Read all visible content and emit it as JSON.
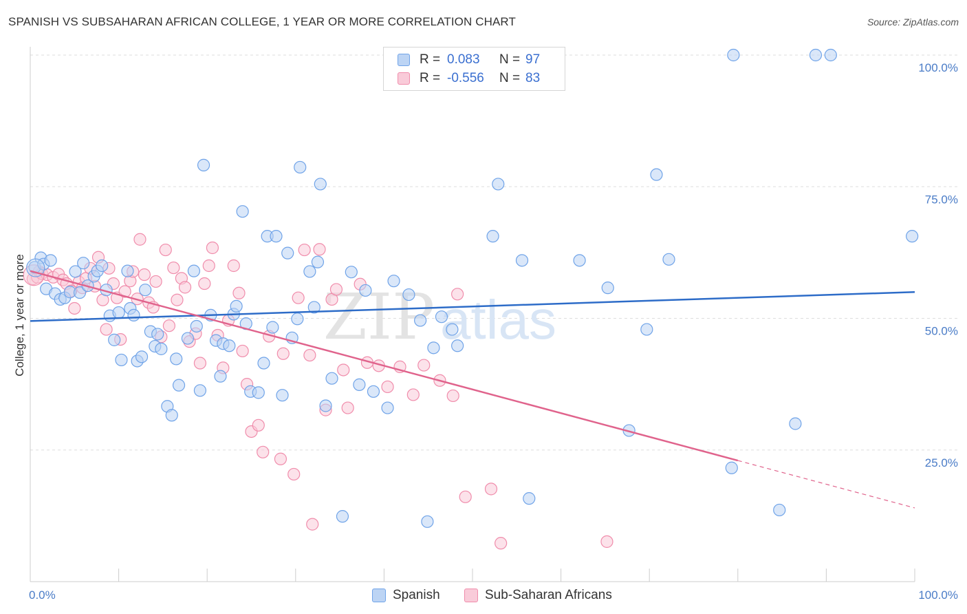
{
  "title": "SPANISH VS SUBSAHARAN AFRICAN COLLEGE, 1 YEAR OR MORE CORRELATION CHART",
  "source": "Source: ZipAtlas.com",
  "watermark": {
    "zip": "ZIP",
    "atlas": "atlas"
  },
  "legend": {
    "rows": [
      {
        "r_label": "R =",
        "r_value": "0.083",
        "n_label": "N =",
        "n_value": "97",
        "color": "#6fa3e8",
        "fill": "#bcd4f4"
      },
      {
        "r_label": "R =",
        "r_value": "-0.556",
        "n_label": "N =",
        "n_value": "83",
        "color": "#f08cab",
        "fill": "#f9cbd9"
      }
    ]
  },
  "bottom_legend": {
    "items": [
      {
        "label": "Spanish",
        "color": "#6fa3e8",
        "fill": "#bcd4f4"
      },
      {
        "label": "Sub-Saharan Africans",
        "color": "#f08cab",
        "fill": "#f9cbd9"
      }
    ]
  },
  "chart_data": {
    "type": "scatter",
    "title": "SPANISH VS SUBSAHARAN AFRICAN COLLEGE, 1 YEAR OR MORE CORRELATION CHART",
    "xlabel": "",
    "ylabel": "College, 1 year or more",
    "xlim": [
      0,
      100
    ],
    "ylim": [
      0,
      100
    ],
    "x_tick_labels": [
      "0.0%",
      "100.0%"
    ],
    "y_ticks": [
      {
        "value": 25,
        "label": "25.0%"
      },
      {
        "value": 50,
        "label": "50.0%"
      },
      {
        "value": 75,
        "label": "75.0%"
      },
      {
        "value": 100,
        "label": "100.0%"
      }
    ],
    "grid": true,
    "legend_position": "top-center",
    "series": [
      {
        "name": "Spanish",
        "color": "#6fa3e8",
        "fill": "#bcd4f4",
        "line_color": "#2d6cc8",
        "trend": {
          "x1": 0,
          "y1": 49.5,
          "x2": 100,
          "y2": 55.0
        },
        "points": [
          [
            0.5,
            59.7
          ],
          [
            1.2,
            61.5
          ],
          [
            1.5,
            60.3
          ],
          [
            2.3,
            61.0
          ],
          [
            1.8,
            55.6
          ],
          [
            2.8,
            54.7
          ],
          [
            3.4,
            53.6
          ],
          [
            3.9,
            53.9
          ],
          [
            4.5,
            55.0
          ],
          [
            5.1,
            58.9
          ],
          [
            5.6,
            54.9
          ],
          [
            6.0,
            60.5
          ],
          [
            6.5,
            56.2
          ],
          [
            7.2,
            58.0
          ],
          [
            7.6,
            59.0
          ],
          [
            8.1,
            60.0
          ],
          [
            8.6,
            55.4
          ],
          [
            9.0,
            50.5
          ],
          [
            9.5,
            45.9
          ],
          [
            10.0,
            51.1
          ],
          [
            10.3,
            42.1
          ],
          [
            11.0,
            59.0
          ],
          [
            11.3,
            51.9
          ],
          [
            11.7,
            50.6
          ],
          [
            12.1,
            41.9
          ],
          [
            12.6,
            42.7
          ],
          [
            13.0,
            55.4
          ],
          [
            13.6,
            47.5
          ],
          [
            14.1,
            44.7
          ],
          [
            14.4,
            47.0
          ],
          [
            14.8,
            44.2
          ],
          [
            15.5,
            33.3
          ],
          [
            16.0,
            31.6
          ],
          [
            16.5,
            42.3
          ],
          [
            16.8,
            37.3
          ],
          [
            17.8,
            46.2
          ],
          [
            18.5,
            59.0
          ],
          [
            18.8,
            48.5
          ],
          [
            19.2,
            36.3
          ],
          [
            19.6,
            79.1
          ],
          [
            20.4,
            50.6
          ],
          [
            21.0,
            45.8
          ],
          [
            21.5,
            39.0
          ],
          [
            21.8,
            45.2
          ],
          [
            22.5,
            44.8
          ],
          [
            23.0,
            50.8
          ],
          [
            23.3,
            52.3
          ],
          [
            24.4,
            49.0
          ],
          [
            24.0,
            70.3
          ],
          [
            24.9,
            36.1
          ],
          [
            25.8,
            35.9
          ],
          [
            26.4,
            41.5
          ],
          [
            26.8,
            65.6
          ],
          [
            27.4,
            48.3
          ],
          [
            27.8,
            65.6
          ],
          [
            28.5,
            35.4
          ],
          [
            29.1,
            62.4
          ],
          [
            29.6,
            46.3
          ],
          [
            30.2,
            49.9
          ],
          [
            30.5,
            78.7
          ],
          [
            31.6,
            58.9
          ],
          [
            32.1,
            52.1
          ],
          [
            32.5,
            60.7
          ],
          [
            32.8,
            75.5
          ],
          [
            33.4,
            33.4
          ],
          [
            34.1,
            38.6
          ],
          [
            35.3,
            12.4
          ],
          [
            36.3,
            58.8
          ],
          [
            37.2,
            37.4
          ],
          [
            37.9,
            55.3
          ],
          [
            38.8,
            36.1
          ],
          [
            40.4,
            33.0
          ],
          [
            41.1,
            57.1
          ],
          [
            42.8,
            54.5
          ],
          [
            44.1,
            49.6
          ],
          [
            44.9,
            11.4
          ],
          [
            45.6,
            44.4
          ],
          [
            46.5,
            50.3
          ],
          [
            47.7,
            47.9
          ],
          [
            48.3,
            44.8
          ],
          [
            52.3,
            65.6
          ],
          [
            52.9,
            75.5
          ],
          [
            55.6,
            61.0
          ],
          [
            56.4,
            15.8
          ],
          [
            62.1,
            61.0
          ],
          [
            65.3,
            55.8
          ],
          [
            67.7,
            28.7
          ],
          [
            69.7,
            47.9
          ],
          [
            70.8,
            77.3
          ],
          [
            72.2,
            61.2
          ],
          [
            79.3,
            21.6
          ],
          [
            79.5,
            100.0
          ],
          [
            84.7,
            13.6
          ],
          [
            86.5,
            30.0
          ],
          [
            88.8,
            100.0
          ],
          [
            90.5,
            100.0
          ],
          [
            99.7,
            65.6
          ]
        ]
      },
      {
        "name": "Sub-Saharan Africans",
        "color": "#f08cab",
        "fill": "#f9cbd9",
        "line_color": "#e0638c",
        "trend": {
          "x1": 0,
          "y1": 59.0,
          "x2": 80,
          "y2": 23.0,
          "dash_to_x": 100,
          "dash_to_y": 14.0
        },
        "points": [
          [
            0.3,
            57.5
          ],
          [
            0.8,
            57.8
          ],
          [
            1.0,
            58.9
          ],
          [
            1.3,
            58.5
          ],
          [
            1.9,
            58.3
          ],
          [
            2.6,
            57.8
          ],
          [
            3.2,
            58.4
          ],
          [
            3.7,
            57.3
          ],
          [
            4.1,
            56.6
          ],
          [
            4.6,
            55.2
          ],
          [
            5.0,
            51.9
          ],
          [
            5.5,
            56.9
          ],
          [
            5.9,
            55.8
          ],
          [
            6.3,
            57.6
          ],
          [
            6.8,
            59.5
          ],
          [
            7.3,
            56.1
          ],
          [
            7.7,
            61.6
          ],
          [
            8.2,
            53.5
          ],
          [
            8.6,
            47.9
          ],
          [
            8.9,
            59.5
          ],
          [
            9.4,
            56.6
          ],
          [
            9.8,
            53.9
          ],
          [
            10.2,
            46.0
          ],
          [
            10.7,
            55.1
          ],
          [
            11.3,
            57.1
          ],
          [
            11.6,
            58.9
          ],
          [
            12.1,
            53.7
          ],
          [
            12.4,
            65.0
          ],
          [
            12.9,
            58.3
          ],
          [
            13.4,
            53.0
          ],
          [
            13.9,
            52.1
          ],
          [
            14.2,
            57.0
          ],
          [
            14.8,
            46.5
          ],
          [
            15.3,
            63.0
          ],
          [
            15.7,
            48.6
          ],
          [
            16.2,
            59.6
          ],
          [
            16.6,
            53.5
          ],
          [
            17.1,
            57.6
          ],
          [
            17.5,
            55.9
          ],
          [
            18.0,
            45.6
          ],
          [
            18.7,
            47.1
          ],
          [
            19.2,
            41.5
          ],
          [
            19.7,
            56.6
          ],
          [
            20.2,
            60.0
          ],
          [
            20.6,
            63.4
          ],
          [
            21.2,
            46.8
          ],
          [
            21.8,
            40.6
          ],
          [
            22.4,
            49.6
          ],
          [
            23.0,
            60.0
          ],
          [
            23.6,
            54.8
          ],
          [
            24.0,
            43.8
          ],
          [
            24.5,
            37.5
          ],
          [
            25.0,
            28.5
          ],
          [
            25.8,
            29.7
          ],
          [
            26.3,
            24.6
          ],
          [
            27.0,
            46.6
          ],
          [
            28.3,
            23.3
          ],
          [
            28.6,
            43.3
          ],
          [
            29.8,
            20.4
          ],
          [
            30.3,
            53.9
          ],
          [
            31.0,
            63.0
          ],
          [
            31.6,
            43.0
          ],
          [
            31.9,
            10.9
          ],
          [
            32.7,
            63.1
          ],
          [
            33.4,
            32.6
          ],
          [
            34.1,
            53.6
          ],
          [
            34.6,
            55.5
          ],
          [
            35.4,
            40.2
          ],
          [
            35.9,
            33.0
          ],
          [
            37.3,
            56.5
          ],
          [
            38.1,
            41.6
          ],
          [
            39.4,
            41.0
          ],
          [
            40.4,
            37.0
          ],
          [
            41.8,
            40.8
          ],
          [
            43.3,
            35.5
          ],
          [
            44.5,
            41.1
          ],
          [
            46.3,
            38.2
          ],
          [
            47.8,
            35.3
          ],
          [
            48.3,
            54.6
          ],
          [
            49.2,
            16.1
          ],
          [
            52.1,
            17.6
          ],
          [
            53.2,
            7.3
          ],
          [
            65.2,
            7.6
          ]
        ]
      }
    ]
  }
}
